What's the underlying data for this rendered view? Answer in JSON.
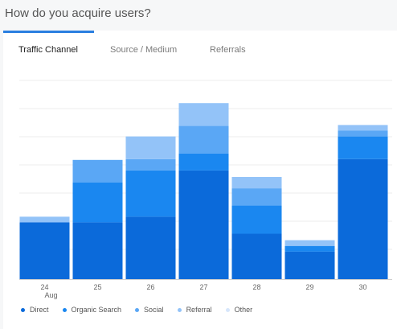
{
  "header": {
    "title": "How do you acquire users?"
  },
  "tabs": [
    {
      "label": "Traffic Channel",
      "active": true
    },
    {
      "label": "Source / Medium",
      "active": false
    },
    {
      "label": "Referrals",
      "active": false
    }
  ],
  "colors": {
    "accent": "#2a7fe0",
    "direct": "#0b6ada",
    "organic_search": "#1a87f0",
    "social": "#5aa7f5",
    "referral": "#93c3f8",
    "other": "#d7e6fb"
  },
  "chart_data": {
    "type": "bar",
    "stacked": true,
    "categories": [
      "24",
      "25",
      "26",
      "27",
      "28",
      "29",
      "30"
    ],
    "category_sublabels": [
      "Aug",
      "",
      "",
      "",
      "",
      "",
      ""
    ],
    "series": [
      {
        "name": "Direct",
        "values": [
          70,
          70,
          77,
          134,
          56,
          34,
          148
        ]
      },
      {
        "name": "Organic Search",
        "values": [
          0,
          49,
          57,
          21,
          35,
          7,
          28
        ]
      },
      {
        "name": "Social",
        "values": [
          0,
          28,
          14,
          34,
          21,
          0,
          7
        ]
      },
      {
        "name": "Referral",
        "values": [
          7,
          0,
          28,
          28,
          14,
          7,
          7
        ]
      },
      {
        "name": "Other",
        "values": [
          0,
          0,
          0,
          0,
          0,
          0,
          0
        ]
      }
    ],
    "ylim": [
      0,
      245
    ],
    "grid": true,
    "legend_position": "bottom-left"
  },
  "legend": {
    "items": [
      {
        "label": "Direct",
        "color": "#0b6ada"
      },
      {
        "label": "Organic Search",
        "color": "#1a87f0"
      },
      {
        "label": "Social",
        "color": "#5aa7f5"
      },
      {
        "label": "Referral",
        "color": "#93c3f8"
      },
      {
        "label": "Other",
        "color": "#d7e6fb"
      }
    ]
  }
}
